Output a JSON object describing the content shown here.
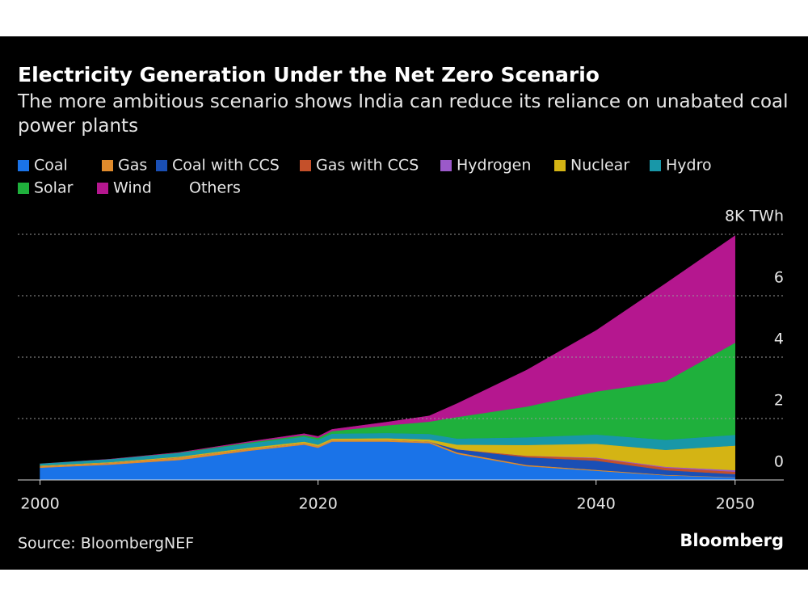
{
  "chart_data": {
    "type": "stacked-area",
    "title": "Electricity Generation Under the Net Zero Scenario",
    "subtitle": "The more ambitious scenario shows India can reduce its reliance on unabated coal power plants",
    "source": "Source: BloombergNEF",
    "brand": "Bloomberg",
    "x": [
      2000,
      2005,
      2010,
      2015,
      2019,
      2020,
      2021,
      2025,
      2028,
      2030,
      2035,
      2040,
      2045,
      2050
    ],
    "series": [
      {
        "name": "Coal",
        "color": "#1a73e8",
        "values": [
          0.4,
          0.5,
          0.65,
          0.95,
          1.15,
          1.05,
          1.25,
          1.25,
          1.2,
          0.85,
          0.45,
          0.3,
          0.15,
          0.08
        ]
      },
      {
        "name": "Gas",
        "color": "#e08b2c",
        "values": [
          0.05,
          0.06,
          0.08,
          0.06,
          0.05,
          0.05,
          0.05,
          0.05,
          0.05,
          0.05,
          0.04,
          0.03,
          0.02,
          0.01
        ]
      },
      {
        "name": "Coal with CCS",
        "color": "#1a4fb5",
        "values": [
          0,
          0,
          0,
          0,
          0,
          0,
          0,
          0,
          0,
          0.1,
          0.25,
          0.3,
          0.15,
          0.1
        ]
      },
      {
        "name": "Gas with CCS",
        "color": "#c4502a",
        "values": [
          0,
          0,
          0,
          0,
          0,
          0,
          0,
          0,
          0,
          0,
          0.05,
          0.08,
          0.08,
          0.08
        ]
      },
      {
        "name": "Hydrogen",
        "color": "#9b59c9",
        "values": [
          0,
          0,
          0,
          0,
          0,
          0,
          0,
          0,
          0,
          0,
          0,
          0.02,
          0.03,
          0.05
        ]
      },
      {
        "name": "Nuclear",
        "color": "#d4b414",
        "values": [
          0.02,
          0.02,
          0.03,
          0.04,
          0.05,
          0.05,
          0.05,
          0.06,
          0.07,
          0.15,
          0.35,
          0.45,
          0.55,
          0.8
        ]
      },
      {
        "name": "Hydro",
        "color": "#1897a8",
        "values": [
          0.07,
          0.1,
          0.12,
          0.14,
          0.16,
          0.16,
          0.16,
          0.17,
          0.18,
          0.2,
          0.25,
          0.3,
          0.33,
          0.35
        ]
      },
      {
        "name": "Solar",
        "color": "#1fb03c",
        "values": [
          0,
          0,
          0.01,
          0.03,
          0.05,
          0.06,
          0.08,
          0.25,
          0.4,
          0.7,
          1.0,
          1.4,
          1.9,
          3.0
        ]
      },
      {
        "name": "Wind",
        "color": "#b5178f",
        "values": [
          0,
          0.01,
          0.02,
          0.04,
          0.06,
          0.06,
          0.07,
          0.12,
          0.2,
          0.45,
          1.2,
          2.0,
          3.2,
          3.5
        ]
      },
      {
        "name": "Others",
        "color": "#000000",
        "values": [
          0.02,
          0.02,
          0.02,
          0.02,
          0.02,
          0.02,
          0.02,
          0.02,
          0.02,
          0.02,
          0.02,
          0.02,
          0.02,
          0.02
        ]
      }
    ],
    "xlim": [
      1998.4,
      2053.5
    ],
    "xticks": [
      2000,
      2020,
      2040,
      2050
    ],
    "ylim": [
      0,
      8
    ],
    "yticks": [
      0,
      2,
      4,
      6,
      {
        "value": 8,
        "label": "8K TWh"
      }
    ],
    "grid": true
  }
}
